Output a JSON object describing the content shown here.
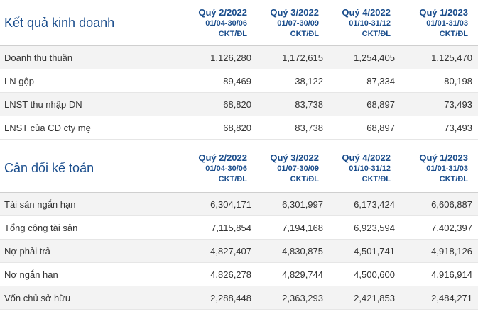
{
  "business": {
    "title": "Kết quả kinh doanh",
    "periods": [
      {
        "quarter": "Quý 2/2022",
        "dates": "01/04-30/06",
        "unit": "CKT/ĐL"
      },
      {
        "quarter": "Quý 3/2022",
        "dates": "01/07-30/09",
        "unit": "CKT/ĐL"
      },
      {
        "quarter": "Quý 4/2022",
        "dates": "01/10-31/12",
        "unit": "CKT/ĐL"
      },
      {
        "quarter": "Quý 1/2023",
        "dates": "01/01-31/03",
        "unit": "CKT/ĐL"
      }
    ],
    "rows": [
      {
        "label": "Doanh thu thuần",
        "values": [
          "1,126,280",
          "1,172,615",
          "1,254,405",
          "1,125,470"
        ]
      },
      {
        "label": "LN gộp",
        "values": [
          "89,469",
          "38,122",
          "87,334",
          "80,198"
        ]
      },
      {
        "label": "LNST thu nhập DN",
        "values": [
          "68,820",
          "83,738",
          "68,897",
          "73,493"
        ]
      },
      {
        "label": "LNST của CĐ cty mẹ",
        "values": [
          "68,820",
          "83,738",
          "68,897",
          "73,493"
        ]
      }
    ]
  },
  "balance": {
    "title": "Cân đối kế toán",
    "periods": [
      {
        "quarter": "Quý 2/2022",
        "dates": "01/04-30/06",
        "unit": "CKT/ĐL"
      },
      {
        "quarter": "Quý 3/2022",
        "dates": "01/07-30/09",
        "unit": "CKT/ĐL"
      },
      {
        "quarter": "Quý 4/2022",
        "dates": "01/10-31/12",
        "unit": "CKT/ĐL"
      },
      {
        "quarter": "Quý 1/2023",
        "dates": "01/01-31/03",
        "unit": "CKT/ĐL"
      }
    ],
    "rows": [
      {
        "label": "Tài sản ngắn hạn",
        "values": [
          "6,304,171",
          "6,301,997",
          "6,173,424",
          "6,606,887"
        ]
      },
      {
        "label": "Tổng cộng tài sản",
        "values": [
          "7,115,854",
          "7,194,168",
          "6,923,594",
          "7,402,397"
        ]
      },
      {
        "label": "Nợ phải trả",
        "values": [
          "4,827,407",
          "4,830,875",
          "4,501,741",
          "4,918,126"
        ]
      },
      {
        "label": "Nợ ngắn hạn",
        "values": [
          "4,826,278",
          "4,829,744",
          "4,500,600",
          "4,916,914"
        ]
      },
      {
        "label": "Vốn chủ sở hữu",
        "values": [
          "2,288,448",
          "2,363,293",
          "2,421,853",
          "2,484,271"
        ]
      }
    ]
  },
  "colors": {
    "header_text": "#1a4d8c",
    "row_alt_bg": "#f3f3f3",
    "text": "#333333"
  }
}
